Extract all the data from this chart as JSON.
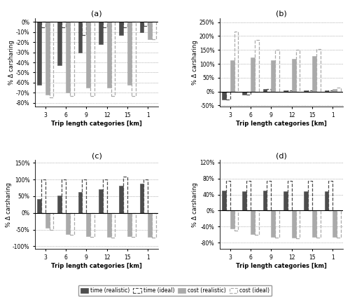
{
  "subplots": {
    "a": {
      "title": "(a)",
      "xlabel": "Trip length categories [km]",
      "ylabel": "% Δ carsharing",
      "categories": [
        "3",
        "6",
        "9",
        "12",
        "15",
        "1"
      ],
      "time_realistic": [
        -62,
        -43,
        -30,
        -22,
        -13,
        -10
      ],
      "time_ideal": [
        -5,
        -5,
        -13,
        -5,
        -5,
        -4
      ],
      "cost_realistic": [
        -72,
        -70,
        -65,
        -65,
        -62,
        -17
      ],
      "cost_ideal": [
        -75,
        -73,
        -73,
        -73,
        -73,
        -17
      ],
      "ylim": [
        -0.84,
        0.04
      ],
      "yticks": [
        0.0,
        -0.1,
        -0.2,
        -0.3,
        -0.4,
        -0.5,
        -0.6,
        -0.7,
        -0.8
      ],
      "ytick_labels": [
        "0%",
        "-10%",
        "-20%",
        "-30%",
        "-40%",
        "-50%",
        "-60%",
        "-70%",
        "-80%"
      ]
    },
    "b": {
      "title": "(b)",
      "xlabel": "Trip length categories [km]",
      "ylabel": "% Δ carsharing",
      "categories": [
        "3",
        "6",
        "9",
        "12",
        "15",
        "1"
      ],
      "time_realistic": [
        -28,
        -12,
        10,
        5,
        5,
        5
      ],
      "time_ideal": [
        -28,
        -12,
        10,
        5,
        5,
        5
      ],
      "cost_realistic": [
        113,
        122,
        112,
        118,
        128,
        10
      ],
      "cost_ideal": [
        215,
        185,
        150,
        150,
        152,
        15
      ],
      "ylim": [
        -0.55,
        2.65
      ],
      "yticks": [
        -0.5,
        0.0,
        0.5,
        1.0,
        1.5,
        2.0,
        2.5
      ],
      "ytick_labels": [
        "-50%",
        "0%",
        "50%",
        "100%",
        "150%",
        "200%",
        "250%"
      ]
    },
    "c": {
      "title": "(c)",
      "xlabel": "Trip length categories [km]",
      "ylabel": "% Δ carsharing",
      "categories": [
        "3",
        "6",
        "9",
        "12",
        "15",
        "1"
      ],
      "time_realistic": [
        42,
        52,
        62,
        70,
        82,
        87
      ],
      "time_ideal": [
        100,
        100,
        100,
        100,
        108,
        100
      ],
      "cost_realistic": [
        -45,
        -63,
        -70,
        -72,
        -70,
        -72
      ],
      "cost_ideal": [
        -50,
        -65,
        -72,
        -74,
        -72,
        -74
      ],
      "ylim": [
        -1.08,
        1.58
      ],
      "yticks": [
        -1.0,
        -0.5,
        0.0,
        0.5,
        1.0,
        1.5
      ],
      "ytick_labels": [
        "-100%",
        "-50%",
        "0%",
        "50%",
        "100%",
        "150%"
      ]
    },
    "d": {
      "title": "(d)",
      "xlabel": "Trip length categories [km]",
      "ylabel": "% Δ carsharing",
      "categories": [
        "3",
        "6",
        "9",
        "12",
        "15",
        "1"
      ],
      "time_realistic": [
        50,
        48,
        50,
        48,
        48,
        48
      ],
      "time_ideal": [
        75,
        75,
        75,
        75,
        75,
        75
      ],
      "cost_realistic": [
        -45,
        -58,
        -66,
        -68,
        -66,
        -66
      ],
      "cost_ideal": [
        -50,
        -60,
        -68,
        -70,
        -68,
        -68
      ],
      "ylim": [
        -0.96,
        1.26
      ],
      "yticks": [
        -0.8,
        -0.4,
        0.0,
        0.4,
        0.8,
        1.2
      ],
      "ytick_labels": [
        "-80%",
        "-40%",
        "0%",
        "40%",
        "80%",
        "120%"
      ]
    }
  },
  "colors": {
    "time_realistic": "#4d4d4d",
    "time_ideal_edge": "#4d4d4d",
    "cost_realistic": "#aaaaaa",
    "cost_ideal_edge": "#aaaaaa"
  },
  "legend": {
    "labels": [
      "time (realistic)",
      "time (ideal)",
      "cost (realistic)",
      "cost (ideal)"
    ]
  }
}
